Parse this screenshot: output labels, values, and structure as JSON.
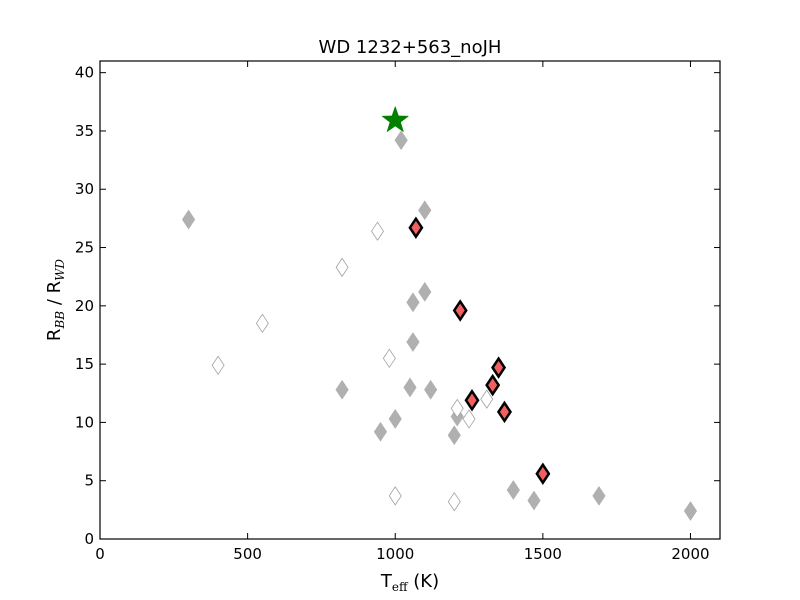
{
  "chart_data": {
    "type": "scatter",
    "title": "WD 1232+563_noJH",
    "xlabel": {
      "main": "T",
      "sub": "eff",
      "unit": " (K)"
    },
    "ylabel": {
      "part1": "R",
      "sub1": "BB",
      "sep": " / R",
      "sub2": "WD"
    },
    "xlim": [
      0,
      2100
    ],
    "ylim": [
      0,
      41
    ],
    "xticks": [
      0,
      500,
      1000,
      1500,
      2000
    ],
    "yticks": [
      0,
      5,
      10,
      15,
      20,
      25,
      30,
      35,
      40
    ],
    "grid": false,
    "series": [
      {
        "marker": "diamond",
        "style": "filled-gray",
        "color": "#b0b0b0",
        "points": [
          [
            300,
            27.4
          ],
          [
            820,
            12.8
          ],
          [
            950,
            9.2
          ],
          [
            1000,
            10.3
          ],
          [
            1020,
            34.2
          ],
          [
            1050,
            13.0
          ],
          [
            1060,
            20.3
          ],
          [
            1060,
            16.9
          ],
          [
            1100,
            28.2
          ],
          [
            1100,
            21.2
          ],
          [
            1120,
            12.8
          ],
          [
            1200,
            8.9
          ],
          [
            1210,
            10.5
          ],
          [
            1400,
            4.2
          ],
          [
            1470,
            3.3
          ],
          [
            1690,
            3.7
          ],
          [
            2000,
            2.4
          ]
        ]
      },
      {
        "marker": "diamond",
        "style": "open",
        "color": "#ffffff",
        "edge": "#a0a0a0",
        "points": [
          [
            400,
            14.9
          ],
          [
            550,
            18.5
          ],
          [
            820,
            23.3
          ],
          [
            940,
            26.4
          ],
          [
            980,
            15.5
          ],
          [
            1000,
            3.7
          ],
          [
            1200,
            3.2
          ],
          [
            1210,
            11.2
          ],
          [
            1250,
            10.3
          ],
          [
            1310,
            12.0
          ]
        ]
      },
      {
        "marker": "diamond",
        "style": "highlighted",
        "color": "#f06060",
        "edge": "#000000",
        "points": [
          [
            1070,
            26.7
          ],
          [
            1220,
            19.6
          ],
          [
            1260,
            11.9
          ],
          [
            1330,
            13.2
          ],
          [
            1350,
            14.7
          ],
          [
            1370,
            10.9
          ],
          [
            1500,
            5.6
          ]
        ]
      },
      {
        "marker": "star",
        "style": "star",
        "color": "#008000",
        "points": [
          [
            1000,
            35.9
          ]
        ]
      }
    ]
  }
}
